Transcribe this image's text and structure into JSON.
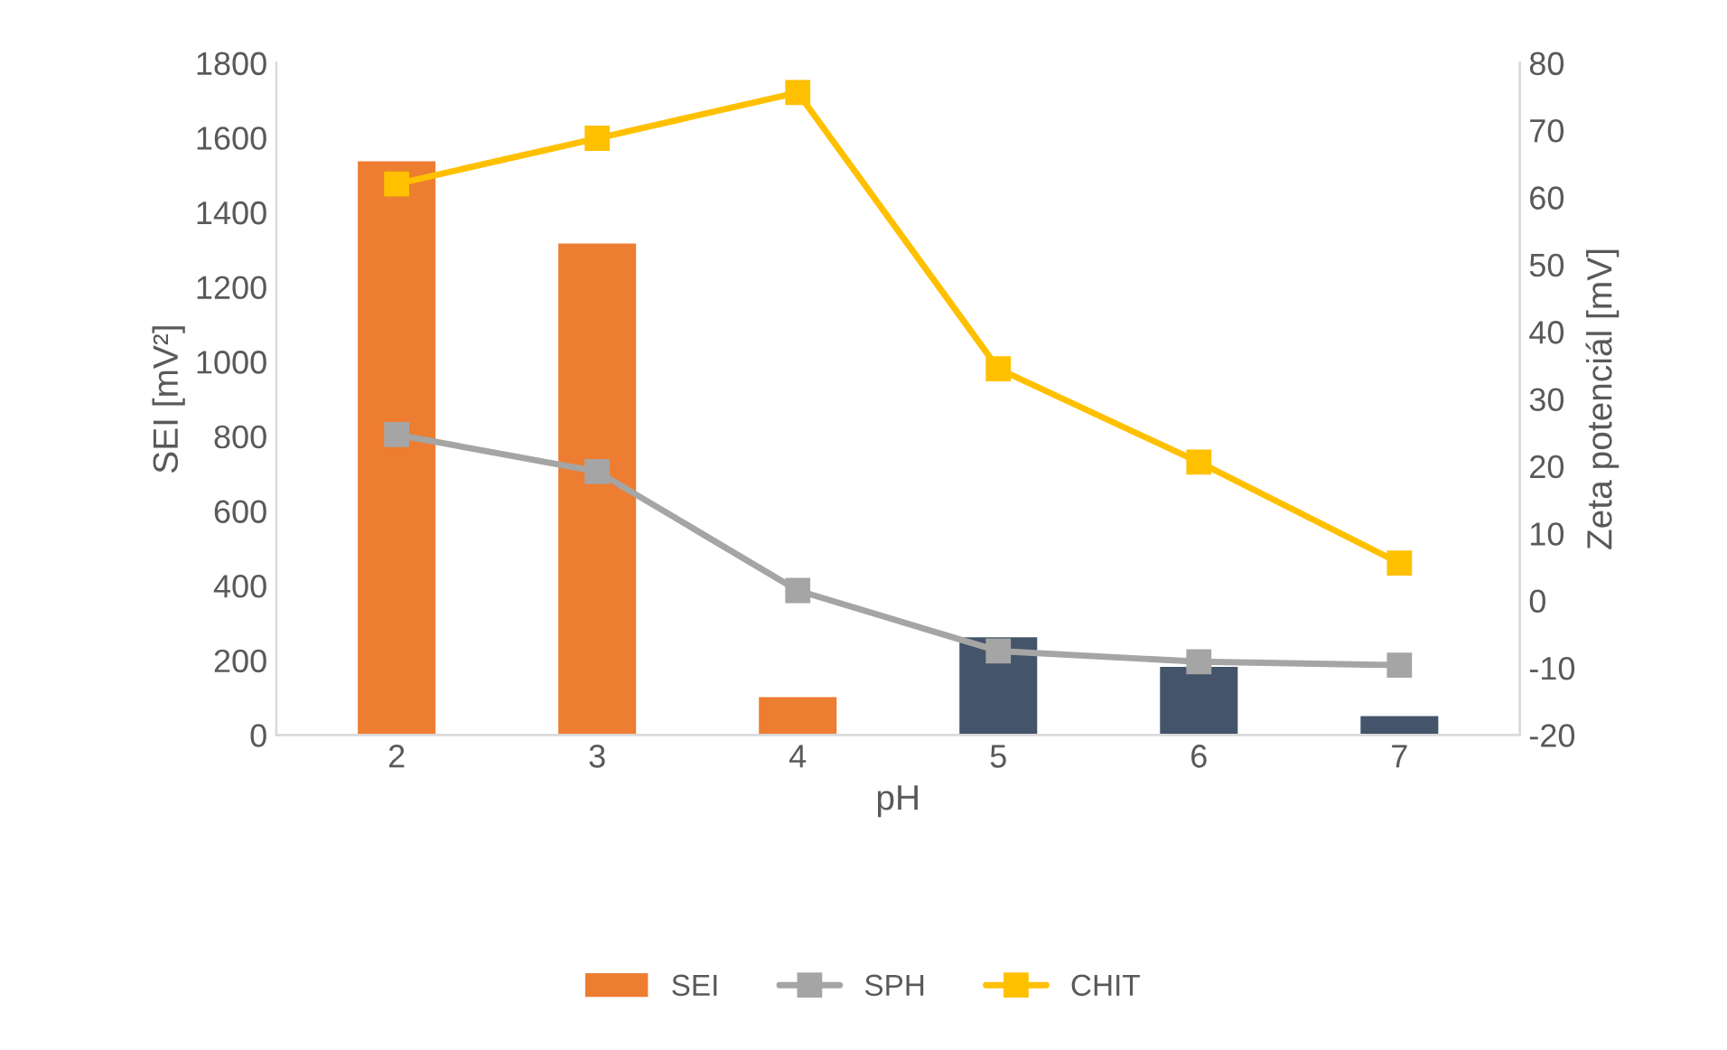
{
  "chart_data": {
    "type": "bar",
    "xlabel": "pH",
    "ylabel": "SEI [mV²]",
    "y2label": "Zeta potenciál [mV]",
    "categories": [
      "2",
      "3",
      "4",
      "5",
      "6",
      "7"
    ],
    "series": [
      {
        "name": "SEI",
        "color": "#ed7d31",
        "colors": [
          "#ed7d31",
          "#ed7d31",
          "#ed7d31",
          "#44546a",
          "#44546a",
          "#44546a"
        ],
        "values": [
          1540,
          1320,
          105,
          265,
          186,
          54
        ]
      },
      {
        "name": "SPH",
        "type": "line",
        "axis": "y2",
        "color": "#a5a5a5",
        "values": [
          24.7,
          19.2,
          1.5,
          -7.5,
          -9.1,
          -9.6
        ]
      },
      {
        "name": "CHIT",
        "type": "line",
        "axis": "y2",
        "color": "#ffc000",
        "values": [
          62,
          68.8,
          75.6,
          34.5,
          20.6,
          5.6
        ]
      }
    ],
    "ylim": [
      0,
      1800
    ],
    "yticks": [
      0,
      200,
      400,
      600,
      800,
      1000,
      1200,
      1400,
      1600,
      1800
    ],
    "y2lim": [
      -20,
      80
    ],
    "y2ticks": [
      -20,
      -10,
      0,
      10,
      20,
      30,
      40,
      50,
      60,
      70,
      80
    ],
    "marker": "square",
    "line_style": "solid",
    "grid": false,
    "legend": "bottom"
  }
}
